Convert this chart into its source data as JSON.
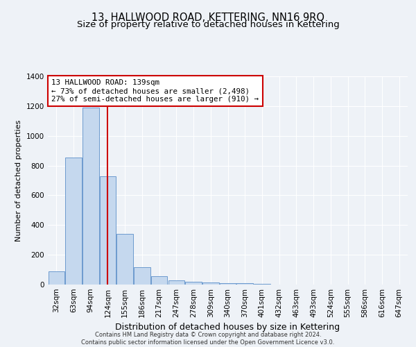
{
  "title": "13, HALLWOOD ROAD, KETTERING, NN16 9RQ",
  "subtitle": "Size of property relative to detached houses in Kettering",
  "xlabel": "Distribution of detached houses by size in Kettering",
  "ylabel": "Number of detached properties",
  "categories": [
    "32sqm",
    "63sqm",
    "94sqm",
    "124sqm",
    "155sqm",
    "186sqm",
    "217sqm",
    "247sqm",
    "278sqm",
    "309sqm",
    "340sqm",
    "370sqm",
    "401sqm",
    "432sqm",
    "463sqm",
    "493sqm",
    "524sqm",
    "555sqm",
    "586sqm",
    "616sqm",
    "647sqm"
  ],
  "values": [
    90,
    855,
    1190,
    730,
    340,
    115,
    55,
    30,
    20,
    15,
    10,
    8,
    5,
    0,
    0,
    0,
    0,
    0,
    0,
    0,
    0
  ],
  "bar_color": "#c5d8ee",
  "bar_edge_color": "#5b8fc9",
  "annotation_line1": "13 HALLWOOD ROAD: 139sqm",
  "annotation_line2": "← 73% of detached houses are smaller (2,498)",
  "annotation_line3": "27% of semi-detached houses are larger (910) →",
  "annotation_box_facecolor": "#ffffff",
  "annotation_box_edgecolor": "#cc0000",
  "red_line_color": "#cc0000",
  "footer_line1": "Contains HM Land Registry data © Crown copyright and database right 2024.",
  "footer_line2": "Contains public sector information licensed under the Open Government Licence v3.0.",
  "ylim": [
    0,
    1400
  ],
  "yticks": [
    0,
    200,
    400,
    600,
    800,
    1000,
    1200,
    1400
  ],
  "background_color": "#eef2f7",
  "grid_color": "#ffffff",
  "title_fontsize": 10.5,
  "subtitle_fontsize": 9.5,
  "ylabel_fontsize": 8,
  "xlabel_fontsize": 9,
  "tick_fontsize": 7.5,
  "footer_fontsize": 6,
  "annotation_fontsize": 7.8
}
